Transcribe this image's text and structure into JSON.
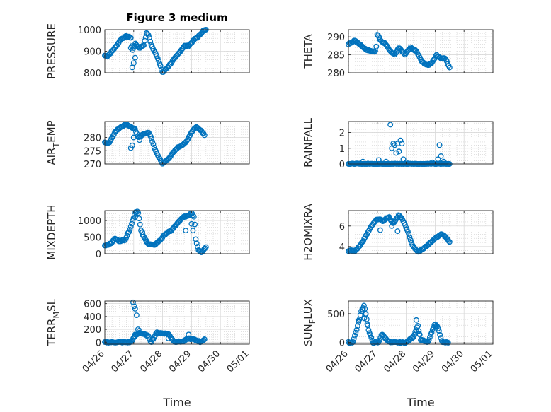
{
  "chart_data": [
    {
      "type": "scatter",
      "title": "Figure 3 medium",
      "ylabel": "PRESSURE",
      "ylim": [
        800,
        1000
      ],
      "yticks": [
        800,
        900,
        1000
      ],
      "xlim": [
        "04/26",
        "05/01"
      ],
      "xticks": [
        "04/26",
        "04/27",
        "04/28",
        "04/29",
        "04/30",
        "05/01"
      ],
      "color": "#0072BD",
      "anchors": [
        [
          0.0,
          880
        ],
        [
          0.1,
          878
        ],
        [
          0.22,
          895
        ],
        [
          0.4,
          925
        ],
        [
          0.55,
          955
        ],
        [
          0.75,
          970
        ],
        [
          0.9,
          963
        ],
        [
          0.95,
          900
        ],
        [
          1.05,
          935
        ],
        [
          1.2,
          915
        ],
        [
          1.35,
          930
        ],
        [
          1.45,
          985
        ],
        [
          1.52,
          975
        ],
        [
          1.6,
          930
        ],
        [
          1.8,
          880
        ],
        [
          2.0,
          800
        ],
        [
          2.2,
          830
        ],
        [
          2.5,
          880
        ],
        [
          2.75,
          925
        ],
        [
          2.9,
          925
        ],
        [
          3.1,
          955
        ],
        [
          3.25,
          970
        ],
        [
          3.4,
          995
        ],
        [
          3.5,
          1000
        ]
      ],
      "outliers": [
        [
          0.95,
          825
        ],
        [
          1.0,
          845
        ],
        [
          1.05,
          870
        ],
        [
          0.9,
          915
        ]
      ]
    },
    {
      "type": "scatter",
      "ylabel": "THETA",
      "ylim": [
        280,
        292
      ],
      "yticks": [
        280,
        285,
        290
      ],
      "xlim": [
        "04/26",
        "05/01"
      ],
      "xticks": [
        "04/26",
        "04/27",
        "04/28",
        "04/29",
        "04/30",
        "05/01"
      ],
      "color": "#0072BD",
      "anchors": [
        [
          0.0,
          288
        ],
        [
          0.2,
          289
        ],
        [
          0.4,
          288
        ],
        [
          0.6,
          286.5
        ],
        [
          0.85,
          286
        ],
        [
          0.95,
          286
        ],
        [
          1.0,
          291
        ],
        [
          1.1,
          289
        ],
        [
          1.3,
          288
        ],
        [
          1.45,
          286
        ],
        [
          1.6,
          285
        ],
        [
          1.75,
          287
        ],
        [
          1.95,
          285
        ],
        [
          2.15,
          287
        ],
        [
          2.35,
          286
        ],
        [
          2.55,
          283
        ],
        [
          2.75,
          282
        ],
        [
          2.9,
          283
        ],
        [
          3.05,
          285
        ],
        [
          3.2,
          284
        ],
        [
          3.35,
          284
        ],
        [
          3.5,
          281.5
        ]
      ],
      "outliers": []
    },
    {
      "type": "scatter",
      "ylabel": "AIR_TEMP",
      "ylim": [
        270,
        286
      ],
      "yticks": [
        270,
        275,
        280
      ],
      "xlim": [
        "04/26",
        "05/01"
      ],
      "xticks": [
        "04/26",
        "04/27",
        "04/28",
        "04/29",
        "04/30",
        "05/01"
      ],
      "color": "#0072BD",
      "anchors": [
        [
          0.0,
          278
        ],
        [
          0.15,
          278
        ],
        [
          0.35,
          282
        ],
        [
          0.55,
          284
        ],
        [
          0.75,
          285
        ],
        [
          0.9,
          284
        ],
        [
          1.05,
          283
        ],
        [
          1.15,
          280
        ],
        [
          1.3,
          281
        ],
        [
          1.5,
          282
        ],
        [
          1.6,
          280
        ],
        [
          1.75,
          275
        ],
        [
          1.9,
          272
        ],
        [
          2.0,
          270
        ],
        [
          2.2,
          272
        ],
        [
          2.5,
          276
        ],
        [
          2.8,
          278
        ],
        [
          3.0,
          282
        ],
        [
          3.15,
          284
        ],
        [
          3.3,
          283
        ],
        [
          3.45,
          281
        ]
      ],
      "outliers": [
        [
          0.9,
          276
        ],
        [
          0.95,
          277
        ],
        [
          1.0,
          280
        ],
        [
          1.2,
          279
        ]
      ]
    },
    {
      "type": "scatter",
      "ylabel": "RAINFALL",
      "ylim": [
        0,
        2.7
      ],
      "yticks": [
        0,
        1,
        2
      ],
      "xlim": [
        "04/26",
        "05/01"
      ],
      "xticks": [
        "04/26",
        "04/27",
        "04/28",
        "04/29",
        "04/30",
        "05/01"
      ],
      "color": "#0072BD",
      "anchors": [
        [
          0.0,
          0
        ],
        [
          3.5,
          0
        ]
      ],
      "outliers": [
        [
          0.5,
          0.15
        ],
        [
          1.05,
          0.25
        ],
        [
          1.3,
          0.15
        ],
        [
          1.45,
          2.5
        ],
        [
          1.5,
          1.0
        ],
        [
          1.55,
          1.3
        ],
        [
          1.6,
          1.2
        ],
        [
          1.65,
          0.7
        ],
        [
          1.7,
          1.3
        ],
        [
          1.75,
          0.8
        ],
        [
          1.8,
          1.5
        ],
        [
          1.85,
          1.3
        ],
        [
          1.9,
          0.3
        ],
        [
          2.0,
          0.1
        ],
        [
          2.9,
          0.1
        ],
        [
          3.1,
          0.3
        ],
        [
          3.15,
          1.2
        ],
        [
          3.2,
          0.5
        ],
        [
          3.3,
          0.15
        ]
      ]
    },
    {
      "type": "scatter",
      "ylabel": "MIXDEPTH",
      "ylim": [
        0,
        1300
      ],
      "yticks": [
        0,
        500,
        1000
      ],
      "xlim": [
        "04/26",
        "05/01"
      ],
      "xticks": [
        "04/26",
        "04/27",
        "04/28",
        "04/29",
        "04/30",
        "05/01"
      ],
      "color": "#0072BD",
      "anchors": [
        [
          0.0,
          250
        ],
        [
          0.2,
          300
        ],
        [
          0.35,
          450
        ],
        [
          0.5,
          380
        ],
        [
          0.7,
          420
        ],
        [
          0.85,
          700
        ],
        [
          0.95,
          950
        ],
        [
          1.05,
          1250
        ],
        [
          1.15,
          1280
        ],
        [
          1.25,
          700
        ],
        [
          1.35,
          500
        ],
        [
          1.5,
          300
        ],
        [
          1.7,
          250
        ],
        [
          1.9,
          400
        ],
        [
          2.1,
          600
        ],
        [
          2.3,
          700
        ],
        [
          2.5,
          900
        ],
        [
          2.7,
          1100
        ],
        [
          2.9,
          1150
        ],
        [
          3.0,
          1250
        ],
        [
          3.1,
          1100
        ],
        [
          3.15,
          400
        ],
        [
          3.25,
          100
        ],
        [
          3.35,
          50
        ],
        [
          3.5,
          200
        ]
      ],
      "outliers": [
        [
          1.05,
          1100
        ],
        [
          1.3,
          650
        ],
        [
          1.45,
          380
        ],
        [
          2.6,
          1000
        ],
        [
          2.8,
          700
        ],
        [
          3.0,
          900
        ],
        [
          3.05,
          700
        ]
      ]
    },
    {
      "type": "scatter",
      "ylabel": "H2OMIXRA",
      "ylim": [
        3.3,
        7.5
      ],
      "yticks": [
        4,
        6
      ],
      "xlim": [
        "04/26",
        "05/01"
      ],
      "xticks": [
        "04/26",
        "04/27",
        "04/28",
        "04/29",
        "04/30",
        "05/01"
      ],
      "color": "#0072BD",
      "anchors": [
        [
          0.0,
          3.6
        ],
        [
          0.25,
          3.6
        ],
        [
          0.5,
          4.5
        ],
        [
          0.8,
          6.0
        ],
        [
          1.0,
          6.7
        ],
        [
          1.2,
          6.5
        ],
        [
          1.4,
          6.9
        ],
        [
          1.55,
          6.2
        ],
        [
          1.75,
          7.1
        ],
        [
          1.9,
          6.5
        ],
        [
          2.05,
          5.5
        ],
        [
          2.2,
          4.2
        ],
        [
          2.4,
          3.5
        ],
        [
          2.6,
          3.8
        ],
        [
          2.8,
          4.3
        ],
        [
          3.0,
          4.8
        ],
        [
          3.2,
          5.2
        ],
        [
          3.35,
          5.0
        ],
        [
          3.5,
          4.4
        ]
      ],
      "outliers": [
        [
          1.1,
          5.6
        ],
        [
          1.5,
          6.0
        ],
        [
          1.7,
          5.5
        ]
      ]
    },
    {
      "type": "scatter",
      "ylabel": "TERR_MSL",
      "ylim": [
        -30,
        640
      ],
      "yticks": [
        0,
        200,
        400,
        600
      ],
      "xlim": [
        "04/26",
        "05/01"
      ],
      "xticks": [
        "04/26",
        "04/27",
        "04/28",
        "04/29",
        "04/30",
        "05/01"
      ],
      "color": "#0072BD",
      "anchors": [
        [
          0.0,
          0
        ],
        [
          0.9,
          0
        ],
        [
          1.05,
          100
        ],
        [
          1.2,
          150
        ],
        [
          1.5,
          100
        ],
        [
          1.6,
          0
        ],
        [
          1.8,
          150
        ],
        [
          2.2,
          130
        ],
        [
          2.4,
          10
        ],
        [
          2.7,
          10
        ],
        [
          2.9,
          60
        ],
        [
          3.1,
          40
        ],
        [
          3.3,
          10
        ],
        [
          3.45,
          40
        ]
      ],
      "outliers": [
        [
          0.98,
          620
        ],
        [
          1.02,
          560
        ],
        [
          1.05,
          520
        ],
        [
          1.1,
          420
        ],
        [
          1.15,
          200
        ],
        [
          1.2,
          180
        ],
        [
          1.05,
          120
        ],
        [
          2.2,
          60
        ],
        [
          2.9,
          120
        ],
        [
          3.3,
          0
        ]
      ]
    },
    {
      "type": "scatter",
      "ylabel": "SUN_FLUX",
      "ylim": [
        -30,
        720
      ],
      "yticks": [
        0,
        500
      ],
      "xlim": [
        "04/26",
        "05/01"
      ],
      "xticks": [
        "04/26",
        "04/27",
        "04/28",
        "04/29",
        "04/30",
        "05/01"
      ],
      "color": "#0072BD",
      "anchors": [
        [
          0.0,
          0
        ],
        [
          0.15,
          0
        ],
        [
          0.3,
          250
        ],
        [
          0.45,
          550
        ],
        [
          0.55,
          650
        ],
        [
          0.7,
          200
        ],
        [
          0.85,
          0
        ],
        [
          1.05,
          0
        ],
        [
          1.15,
          150
        ],
        [
          1.3,
          60
        ],
        [
          1.45,
          0
        ],
        [
          2.0,
          0
        ],
        [
          2.25,
          100
        ],
        [
          2.4,
          300
        ],
        [
          2.5,
          50
        ],
        [
          2.75,
          0
        ],
        [
          2.9,
          200
        ],
        [
          3.0,
          330
        ],
        [
          3.1,
          250
        ],
        [
          3.25,
          0
        ],
        [
          3.45,
          0
        ]
      ],
      "outliers": [
        [
          0.35,
          380
        ],
        [
          0.5,
          570
        ],
        [
          0.55,
          420
        ],
        [
          0.6,
          500
        ],
        [
          0.65,
          320
        ],
        [
          2.35,
          390
        ],
        [
          2.45,
          150
        ],
        [
          3.0,
          280
        ]
      ]
    }
  ],
  "xlabel": "Time"
}
